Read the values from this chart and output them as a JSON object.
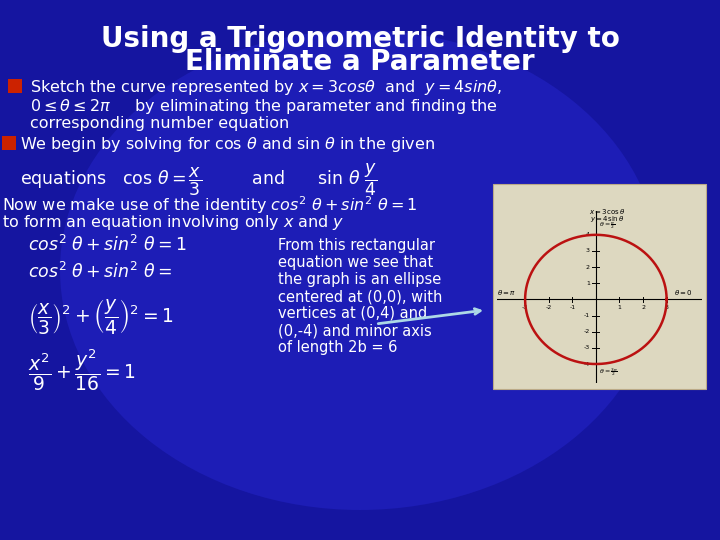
{
  "title_line1": "Using a Trigonometric Identity to",
  "title_line2": "Eliminate a Parameter",
  "background_color": "#1515a0",
  "title_color": "#ffffff",
  "text_color": "#ffffff",
  "bullet_color": "#cc2200",
  "title_fontsize": 20,
  "body_fontsize": 11.5,
  "math_fontsize": 11.5,
  "small_fontsize": 10.5,
  "desc1": "From this rectangular",
  "desc2": "equation we see that",
  "desc3": "the graph is an ellipse",
  "desc4": "centered at (0,0), with",
  "desc5": "vertices at (0,4) and",
  "desc6": "(0,-4) and minor axis",
  "desc7": "of length 2b = 6"
}
